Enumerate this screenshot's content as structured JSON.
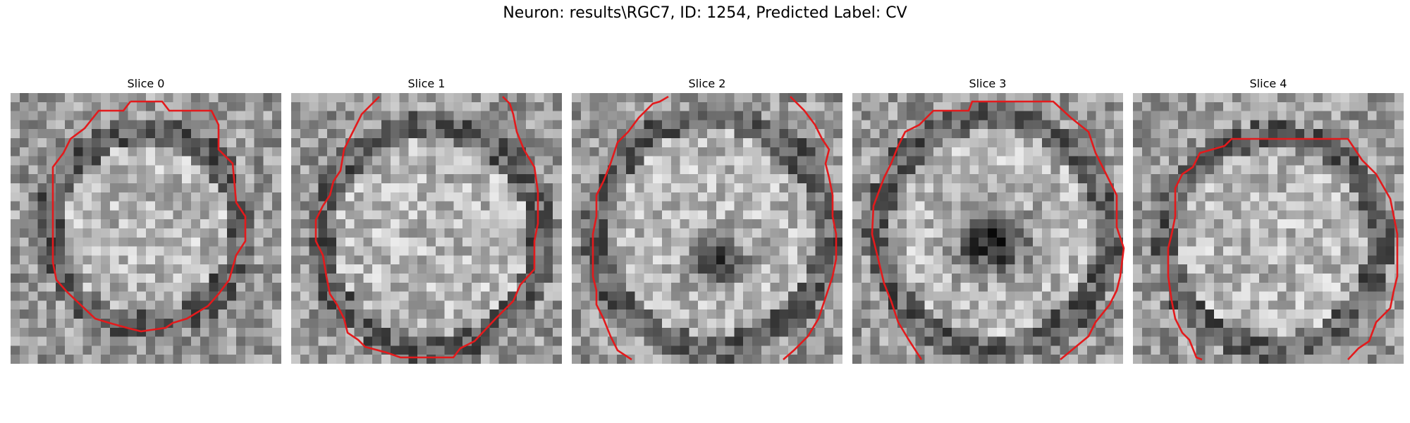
{
  "figure": {
    "title": "Neuron: results\\RGC7, ID: 1254, Predicted Label: CV"
  },
  "slices": [
    {
      "title": "Slice 0"
    },
    {
      "title": "Slice 1"
    },
    {
      "title": "Slice 2"
    },
    {
      "title": "Slice 3"
    },
    {
      "title": "Slice 4"
    }
  ],
  "colors": {
    "contour": "#e31a1c",
    "colormap": "gray"
  }
}
